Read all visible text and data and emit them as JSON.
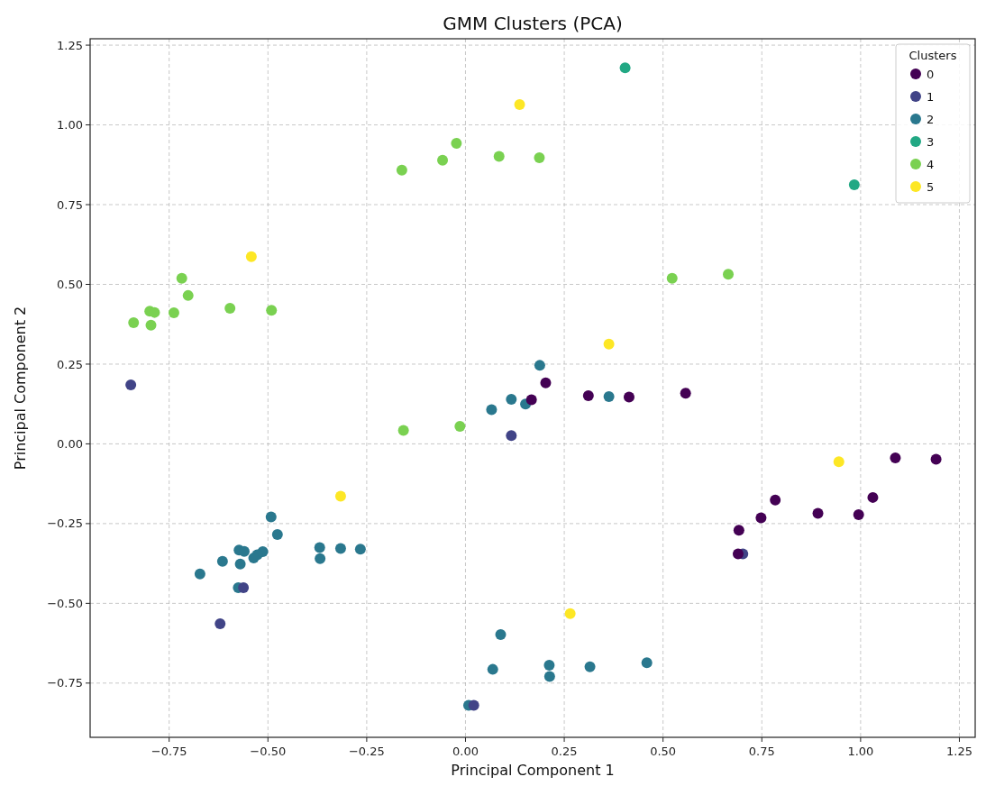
{
  "chart_data": {
    "type": "scatter",
    "title": "GMM Clusters (PCA)",
    "xlabel": "Principal Component 1",
    "ylabel": "Principal Component 2",
    "legend_title": "Clusters",
    "legend": "top right",
    "grid": true,
    "marker": "circle",
    "xlim": [
      -0.95,
      1.29
    ],
    "ylim": [
      -0.92,
      1.27
    ],
    "xticks": [
      {
        "value": -0.75,
        "label": "−0.75"
      },
      {
        "value": -0.5,
        "label": "−0.50"
      },
      {
        "value": -0.25,
        "label": "−0.25"
      },
      {
        "value": 0,
        "label": "0.00"
      },
      {
        "value": 0.25,
        "label": "0.25"
      },
      {
        "value": 0.5,
        "label": "0.50"
      },
      {
        "value": 0.75,
        "label": "0.75"
      },
      {
        "value": 1,
        "label": "1.00"
      },
      {
        "value": 1.25,
        "label": "1.25"
      }
    ],
    "yticks": [
      {
        "value": -0.75,
        "label": "−0.75"
      },
      {
        "value": -0.5,
        "label": "−0.50"
      },
      {
        "value": -0.25,
        "label": "−0.25"
      },
      {
        "value": 0,
        "label": "0.00"
      },
      {
        "value": 0.25,
        "label": "0.25"
      },
      {
        "value": 0.5,
        "label": "0.50"
      },
      {
        "value": 0.75,
        "label": "0.75"
      },
      {
        "value": 1,
        "label": "1.00"
      },
      {
        "value": 1.25,
        "label": "1.25"
      }
    ],
    "series": [
      {
        "name": "0",
        "color": "#440154",
        "x": [
          0.167,
          0.203,
          0.311,
          0.414,
          0.557,
          0.692,
          0.69,
          0.748,
          0.784,
          0.892,
          0.995,
          1.031,
          1.088,
          1.191
        ],
        "values": [
          0.138,
          0.191,
          0.151,
          0.147,
          0.159,
          -0.271,
          -0.345,
          -0.232,
          -0.176,
          -0.218,
          -0.222,
          -0.168,
          -0.044,
          -0.048
        ]
      },
      {
        "name": "1",
        "color": "#414487",
        "x": [
          0.116,
          0.702,
          0.021,
          -0.847,
          -0.562,
          -0.621
        ],
        "values": [
          0.026,
          -0.345,
          -0.82,
          0.185,
          -0.451,
          -0.564
        ]
      },
      {
        "name": "2",
        "color": "#2a788e",
        "x": [
          0.008,
          -0.575,
          -0.492,
          -0.476,
          -0.573,
          -0.56,
          -0.513,
          -0.527,
          -0.536,
          -0.615,
          -0.57,
          -0.672,
          -0.369,
          -0.368,
          -0.316,
          -0.266,
          0.066,
          0.116,
          0.152,
          0.188,
          0.363,
          0.089,
          0.069,
          0.212,
          0.213,
          0.315,
          0.459
        ],
        "values": [
          -0.82,
          -0.451,
          -0.229,
          -0.284,
          -0.333,
          -0.337,
          -0.338,
          -0.348,
          -0.358,
          -0.368,
          -0.377,
          -0.408,
          -0.325,
          -0.36,
          -0.328,
          -0.33,
          0.107,
          0.14,
          0.125,
          0.246,
          0.148,
          -0.598,
          -0.707,
          -0.694,
          -0.729,
          -0.699,
          -0.686
        ]
      },
      {
        "name": "3",
        "color": "#22a884",
        "x": [
          0.404,
          0.984
        ],
        "values": [
          1.179,
          0.812
        ]
      },
      {
        "name": "4",
        "color": "#7ad151",
        "x": [
          -0.161,
          -0.058,
          -0.023,
          0.085,
          0.187,
          0.523,
          0.665,
          -0.718,
          -0.702,
          -0.799,
          -0.787,
          -0.738,
          -0.84,
          -0.796,
          -0.596,
          -0.491,
          -0.157,
          -0.014
        ],
        "values": [
          0.858,
          0.889,
          0.942,
          0.901,
          0.897,
          0.519,
          0.532,
          0.519,
          0.465,
          0.416,
          0.412,
          0.411,
          0.38,
          0.372,
          0.425,
          0.419,
          0.042,
          0.055
        ]
      },
      {
        "name": "5",
        "color": "#fde725",
        "x": [
          -0.542,
          -0.316,
          0.137,
          0.363,
          0.265,
          0.945
        ],
        "values": [
          0.587,
          -0.164,
          1.064,
          0.313,
          -0.532,
          -0.056
        ]
      }
    ]
  }
}
